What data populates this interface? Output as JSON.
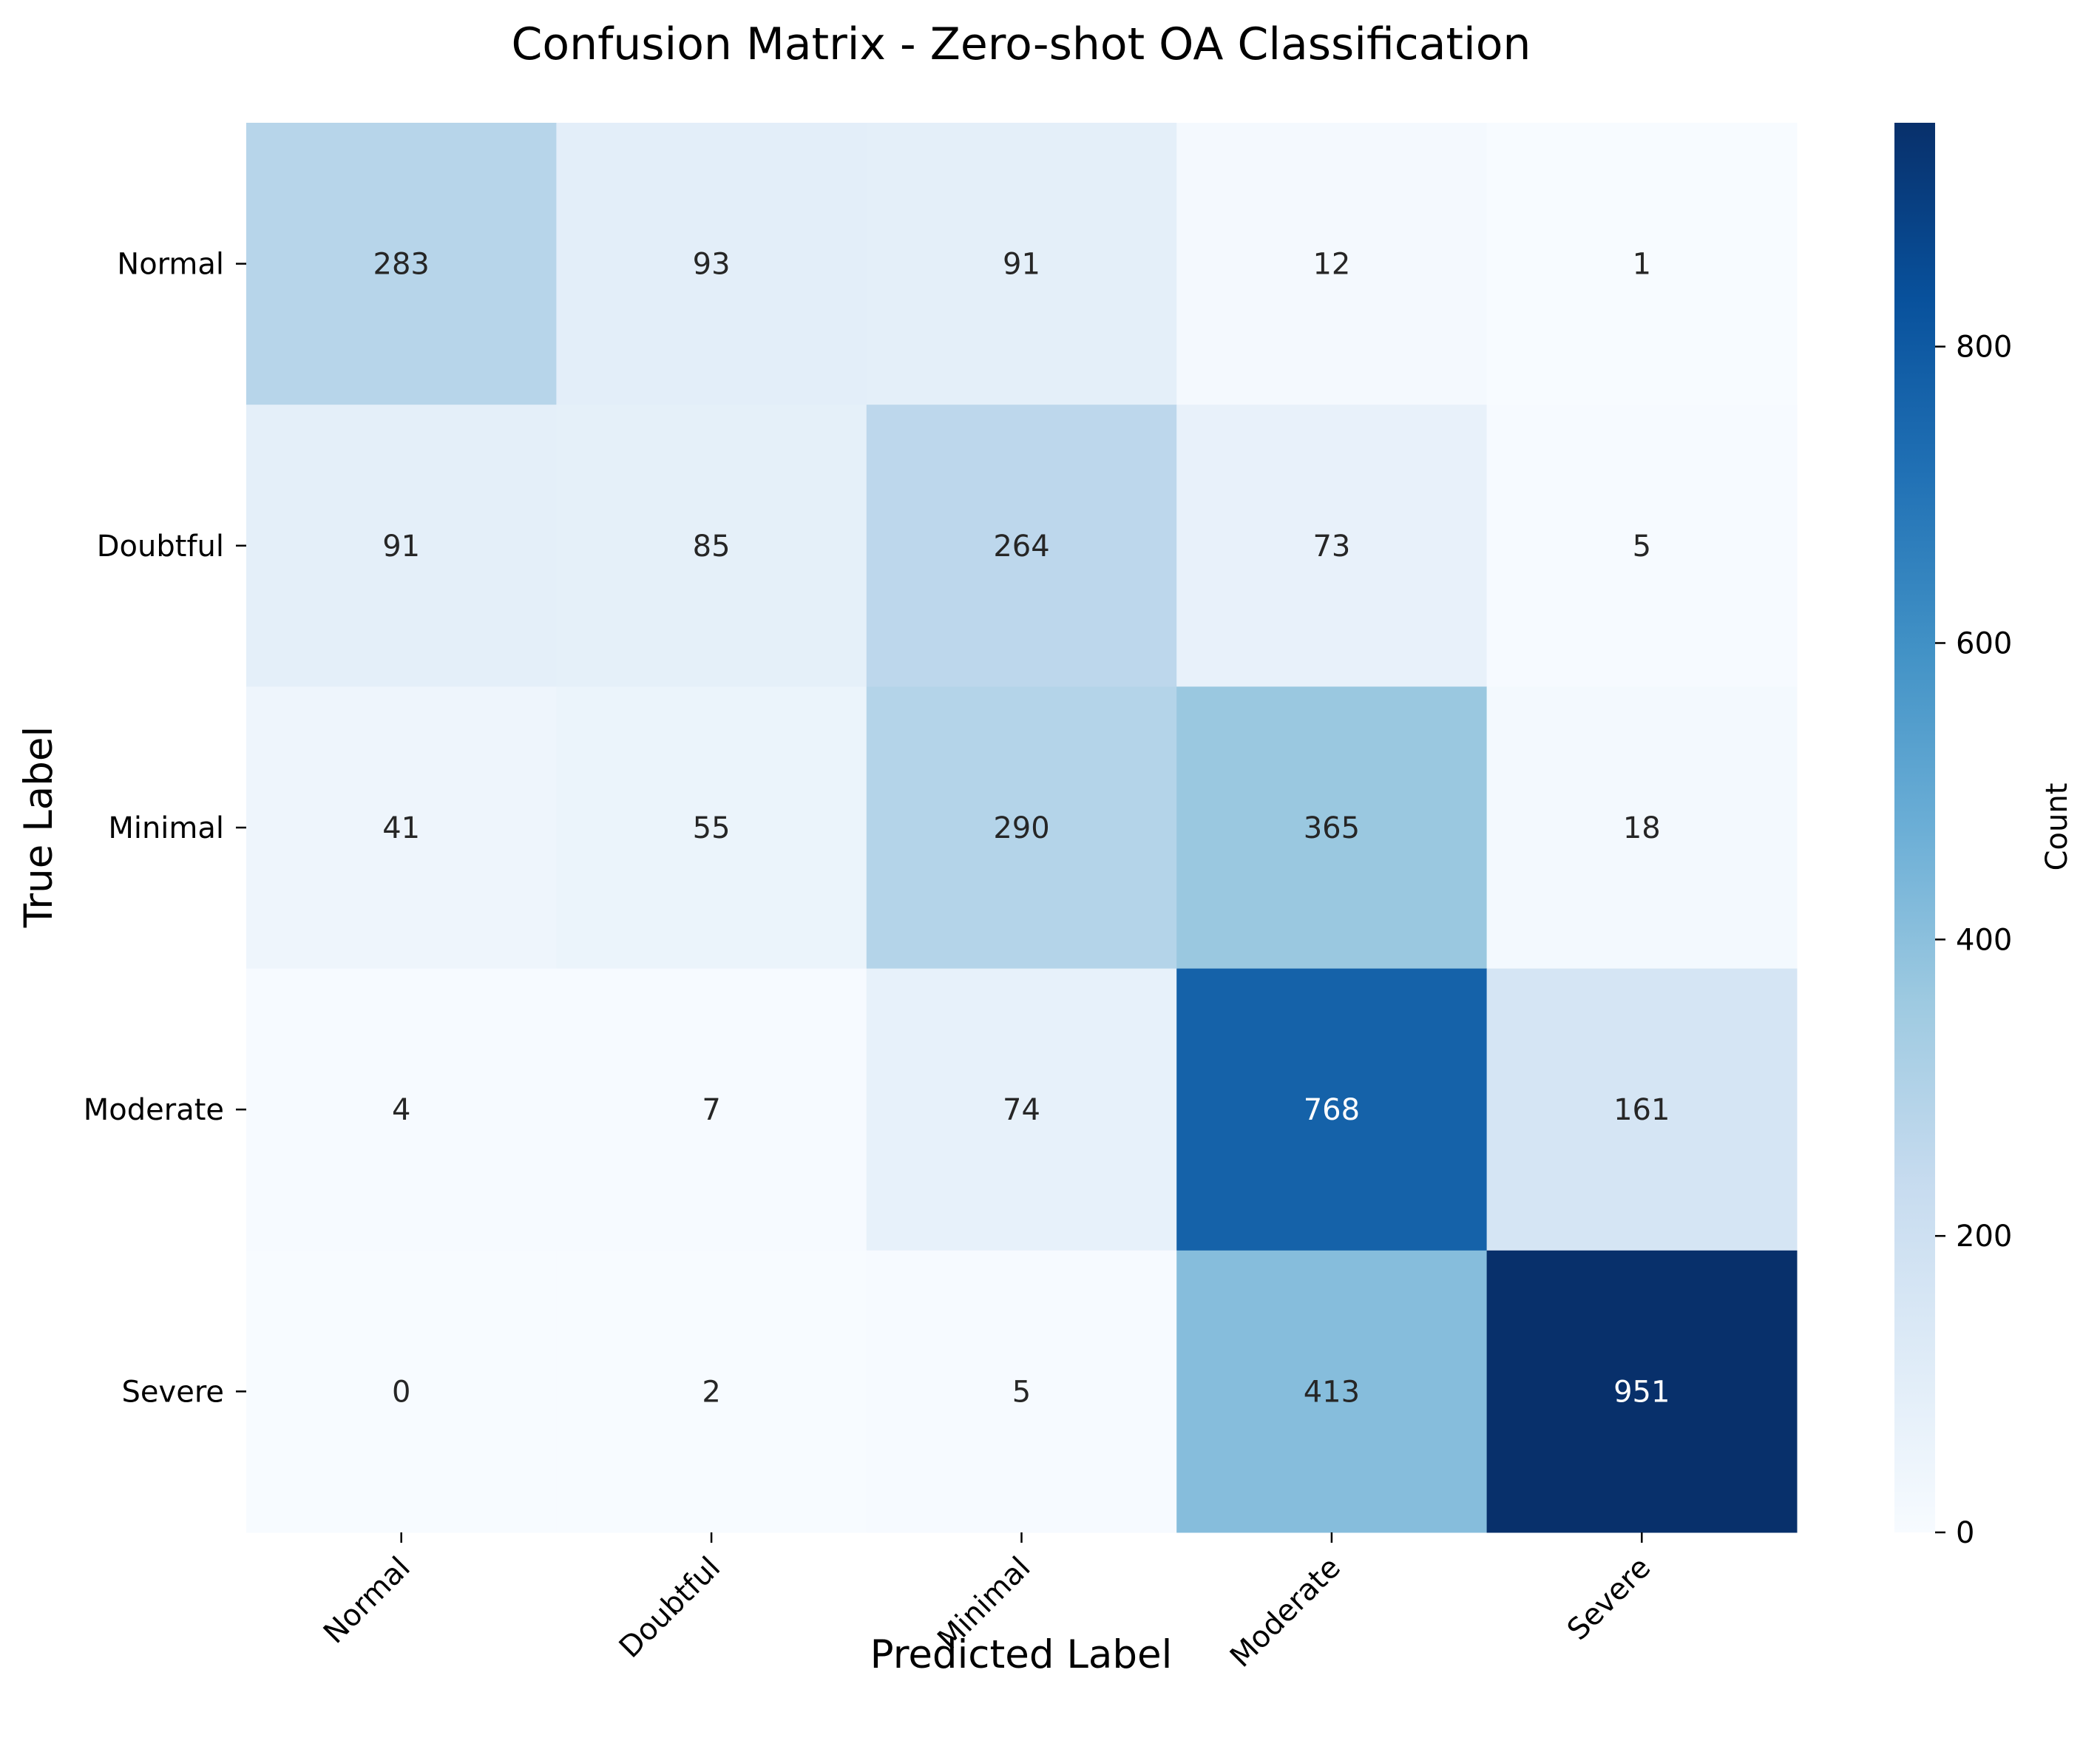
{
  "chart_data": {
    "type": "heatmap",
    "title": "Confusion Matrix - Zero-shot OA Classification",
    "xlabel": "Predicted Label",
    "ylabel": "True Label",
    "x_categories": [
      "Normal",
      "Doubtful",
      "Minimal",
      "Moderate",
      "Severe"
    ],
    "y_categories": [
      "Normal",
      "Doubtful",
      "Minimal",
      "Moderate",
      "Severe"
    ],
    "values": [
      [
        283,
        93,
        91,
        12,
        1
      ],
      [
        91,
        85,
        264,
        73,
        5
      ],
      [
        41,
        55,
        290,
        365,
        18
      ],
      [
        4,
        7,
        74,
        768,
        161
      ],
      [
        0,
        2,
        5,
        413,
        951
      ]
    ],
    "colorbar": {
      "label": "Count",
      "range": [
        0,
        951
      ],
      "ticks": [
        0,
        200,
        400,
        600,
        800
      ]
    },
    "colormap": "Blues",
    "grid": false
  }
}
